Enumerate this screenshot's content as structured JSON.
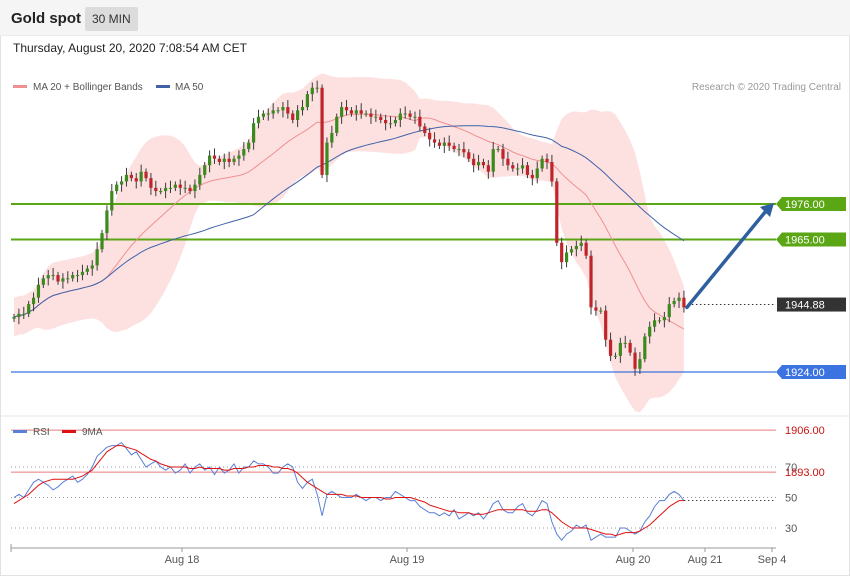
{
  "header": {
    "title": "Gold spot",
    "timeframe": "30 MIN",
    "timestamp": "Thursday, August 20, 2020 7:08:54 AM CET"
  },
  "legend": {
    "ma20_label": "MA 20 + Bollinger Bands",
    "ma50_label": "MA 50",
    "credit": "Research © 2020 Trading Central",
    "rsi_label": "RSI",
    "rsi_ma_label": "9MA"
  },
  "colors": {
    "green_level": "#5aa614",
    "support_blue": "#3b73e0",
    "red_level": "#e05a5a",
    "bullish": "#3c8a1e",
    "bearish": "#c0242b",
    "band_fill": "#fddcdc",
    "ma20": "#f09090",
    "ma50": "#4063a8",
    "rsi": "#5a7fd6",
    "rsi_ma": "#dd1111",
    "arrow": "#2f5f9f"
  },
  "chart_data": [
    {
      "type": "candlestick",
      "timeframe": "30 MIN",
      "y_scale": {
        "ref_price": 1976,
        "ref_pct": 0,
        "pct_per_price_unit": 0.32
      },
      "x_labels": [
        "Aug 18",
        "Aug 19",
        "Aug 20",
        "Aug 21",
        "Sep 4"
      ],
      "levels": [
        {
          "price": "1976.00",
          "kind": "resistance",
          "color": "#5aa614"
        },
        {
          "price": "1965.00",
          "kind": "resistance",
          "color": "#5aa614"
        },
        {
          "price": "1944.88",
          "kind": "current",
          "color": "#333333"
        },
        {
          "price": "1924.00",
          "kind": "support",
          "color": "#3b73e0"
        },
        {
          "price": "1906.00",
          "kind": "support",
          "color": "#e05a5a"
        },
        {
          "price": "1893.00",
          "kind": "support",
          "color": "#e05a5a"
        }
      ],
      "close_series": [
        1941,
        1942,
        1942,
        1945,
        1947,
        1951,
        1953,
        1954,
        1954,
        1952,
        1953,
        1953,
        1954,
        1954,
        1955,
        1956,
        1957,
        1962,
        1967,
        1974,
        1980,
        1982,
        1983,
        1985,
        1984,
        1983,
        1986,
        1984,
        1981,
        1980,
        1980,
        1981,
        1981,
        1982,
        1981,
        1981,
        1980,
        1982,
        1985,
        1988,
        1991,
        1990,
        1989,
        1990,
        1989,
        1990,
        1991,
        1993,
        1995,
        2001,
        2003,
        2004,
        2004,
        2005,
        2005,
        2006,
        2004,
        2002,
        2005,
        2006,
        2010,
        2012,
        2012,
        1985,
        1995,
        1998,
        2003,
        2006,
        2005,
        2004,
        2005,
        2004,
        2004,
        2003,
        2003,
        2002,
        2001,
        2001,
        2002,
        2004,
        2004,
        2003,
        2003,
        2000,
        1998,
        1996,
        1995,
        1994,
        1995,
        1994,
        1993,
        1993,
        1992,
        1990,
        1988,
        1989,
        1988,
        1986,
        1993,
        1993,
        1990,
        1988,
        1987,
        1987,
        1988,
        1985,
        1984,
        1987,
        1990,
        1989,
        1983,
        1964,
        1958,
        1961,
        1962,
        1963,
        1964,
        1960,
        1944,
        1943,
        1943,
        1934,
        1929,
        1929,
        1933,
        1933,
        1930,
        1925,
        1928,
        1935,
        1938,
        1940,
        1940,
        1941,
        1945,
        1946,
        1947,
        1944
      ],
      "rsi": {
        "levels": [
          70,
          50,
          30
        ],
        "rsi_series": [
          50,
          52,
          50,
          55,
          60,
          62,
          60,
          58,
          55,
          57,
          60,
          62,
          64,
          60,
          62,
          65,
          70,
          77,
          80,
          83,
          84,
          84,
          86,
          82,
          78,
          80,
          75,
          70,
          72,
          74,
          70,
          68,
          70,
          66,
          68,
          72,
          66,
          70,
          72,
          68,
          70,
          65,
          70,
          66,
          68,
          72,
          66,
          70,
          70,
          74,
          72,
          72,
          70,
          66,
          66,
          70,
          72,
          70,
          60,
          56,
          60,
          62,
          52,
          38,
          52,
          54,
          52,
          50,
          50,
          50,
          52,
          50,
          48,
          50,
          50,
          48,
          50,
          50,
          54,
          52,
          50,
          48,
          48,
          44,
          42,
          40,
          40,
          38,
          40,
          38,
          42,
          36,
          38,
          40,
          38,
          40,
          36,
          40,
          46,
          48,
          42,
          40,
          40,
          44,
          46,
          40,
          38,
          42,
          48,
          46,
          34,
          26,
          22,
          26,
          28,
          32,
          30,
          32,
          22,
          24,
          26,
          24,
          24,
          24,
          30,
          30,
          28,
          26,
          28,
          34,
          38,
          44,
          48,
          48,
          52,
          54,
          52,
          48
        ],
        "ma_series": [
          46,
          48,
          50,
          52,
          55,
          58,
          60,
          61,
          62,
          62,
          62,
          62,
          62,
          63,
          64,
          66,
          68,
          72,
          76,
          80,
          82,
          84,
          84,
          83,
          82,
          81,
          79,
          77,
          75,
          74,
          72,
          71,
          70,
          70,
          70,
          70,
          69,
          69,
          70,
          69,
          69,
          69,
          69,
          68,
          68,
          69,
          69,
          69,
          70,
          70,
          71,
          71,
          71,
          70,
          70,
          69,
          69,
          68,
          66,
          63,
          60,
          58,
          56,
          54,
          52,
          52,
          52,
          52,
          51,
          51,
          51,
          50,
          50,
          50,
          50,
          50,
          49,
          49,
          50,
          50,
          50,
          50,
          49,
          48,
          47,
          45,
          44,
          43,
          42,
          41,
          41,
          40,
          40,
          40,
          39,
          39,
          39,
          40,
          41,
          42,
          42,
          42,
          42,
          42,
          42,
          41,
          41,
          41,
          42,
          42,
          40,
          37,
          34,
          32,
          30,
          30,
          30,
          30,
          29,
          28,
          27,
          26,
          26,
          25,
          26,
          27,
          27,
          27,
          28,
          30,
          32,
          35,
          38,
          41,
          44,
          46,
          48,
          48
        ]
      }
    }
  ]
}
